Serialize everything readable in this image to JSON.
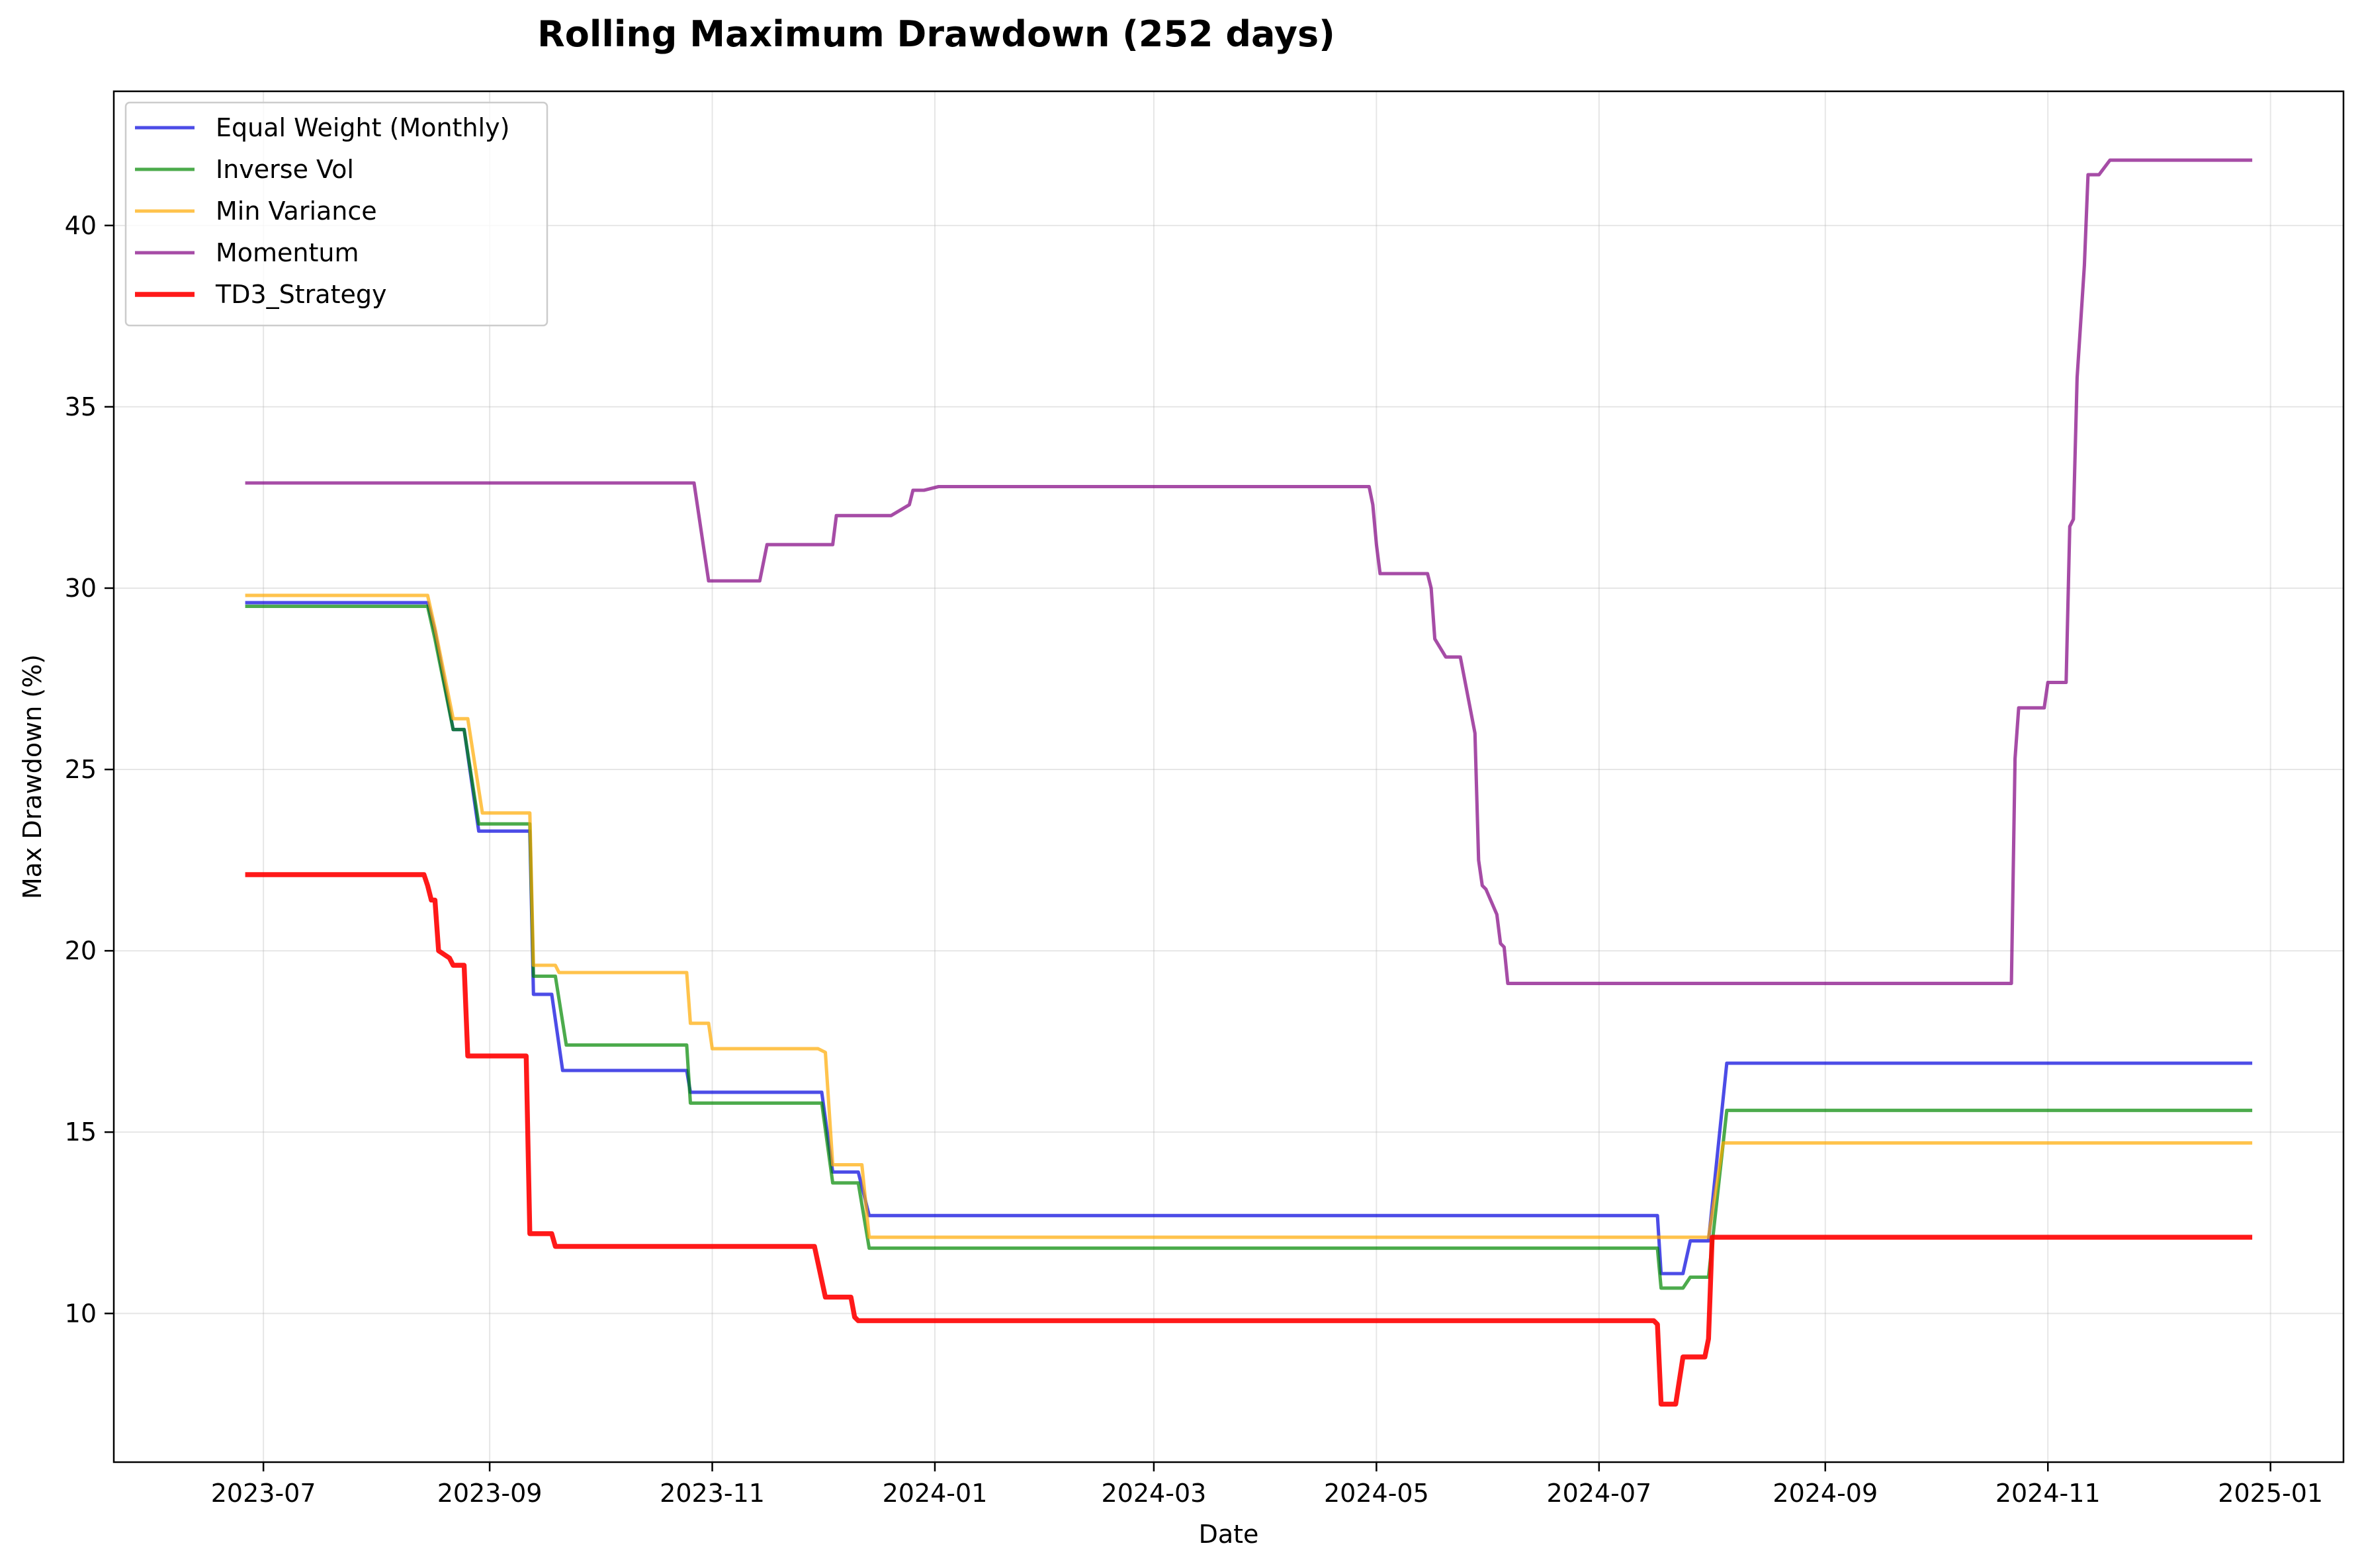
{
  "chart_data": {
    "type": "line",
    "title": "Rolling Maximum Drawdown (252 days)",
    "xlabel": "Date",
    "ylabel": "Max Drawdown (%)",
    "xlim": [
      "2023-05-21",
      "2025-01-21"
    ],
    "ylim": [
      5.9,
      43.7
    ],
    "x_ticks": [
      "2023-07",
      "2023-09",
      "2023-11",
      "2024-01",
      "2024-03",
      "2024-05",
      "2024-07",
      "2024-09",
      "2024-11",
      "2025-01"
    ],
    "y_ticks": [
      10,
      15,
      20,
      25,
      30,
      35,
      40
    ],
    "grid": true,
    "legend_position": "top-left",
    "series": [
      {
        "name": "Equal Weight (Monthly)",
        "color": "#0000dd",
        "opacity": 0.7,
        "width": 2.2,
        "points": [
          [
            "2023-06-26",
            29.6
          ],
          [
            "2023-08-15",
            29.6
          ],
          [
            "2023-08-17",
            28.8
          ],
          [
            "2023-08-22",
            26.1
          ],
          [
            "2023-08-25",
            26.1
          ],
          [
            "2023-08-29",
            23.3
          ],
          [
            "2023-09-12",
            23.3
          ],
          [
            "2023-09-13",
            18.8
          ],
          [
            "2023-09-18",
            18.8
          ],
          [
            "2023-09-21",
            16.7
          ],
          [
            "2023-10-25",
            16.7
          ],
          [
            "2023-10-26",
            16.1
          ],
          [
            "2023-12-01",
            16.1
          ],
          [
            "2023-12-04",
            13.9
          ],
          [
            "2023-12-11",
            13.9
          ],
          [
            "2023-12-14",
            12.7
          ],
          [
            "2024-07-17",
            12.7
          ],
          [
            "2024-07-18",
            11.1
          ],
          [
            "2024-07-24",
            11.1
          ],
          [
            "2024-07-26",
            12.0
          ],
          [
            "2024-07-31",
            12.0
          ],
          [
            "2024-08-05",
            16.9
          ],
          [
            "2024-12-27",
            16.9
          ]
        ]
      },
      {
        "name": "Inverse Vol",
        "color": "#008800",
        "opacity": 0.7,
        "width": 2.2,
        "points": [
          [
            "2023-06-26",
            29.5
          ],
          [
            "2023-08-15",
            29.5
          ],
          [
            "2023-08-17",
            28.6
          ],
          [
            "2023-08-22",
            26.1
          ],
          [
            "2023-08-25",
            26.1
          ],
          [
            "2023-08-29",
            23.5
          ],
          [
            "2023-09-12",
            23.5
          ],
          [
            "2023-09-13",
            19.3
          ],
          [
            "2023-09-19",
            19.3
          ],
          [
            "2023-09-22",
            17.4
          ],
          [
            "2023-10-25",
            17.4
          ],
          [
            "2023-10-26",
            15.8
          ],
          [
            "2023-12-01",
            15.8
          ],
          [
            "2023-12-04",
            13.6
          ],
          [
            "2023-12-11",
            13.6
          ],
          [
            "2023-12-14",
            11.8
          ],
          [
            "2024-07-17",
            11.8
          ],
          [
            "2024-07-18",
            10.7
          ],
          [
            "2024-07-24",
            10.7
          ],
          [
            "2024-07-26",
            11.0
          ],
          [
            "2024-07-31",
            11.0
          ],
          [
            "2024-08-05",
            15.6
          ],
          [
            "2024-12-27",
            15.6
          ]
        ]
      },
      {
        "name": "Min Variance",
        "color": "#ffaa00",
        "opacity": 0.7,
        "width": 2.2,
        "points": [
          [
            "2023-06-26",
            29.8
          ],
          [
            "2023-08-15",
            29.8
          ],
          [
            "2023-08-17",
            28.9
          ],
          [
            "2023-08-22",
            26.4
          ],
          [
            "2023-08-26",
            26.4
          ],
          [
            "2023-08-30",
            23.8
          ],
          [
            "2023-09-12",
            23.8
          ],
          [
            "2023-09-13",
            19.6
          ],
          [
            "2023-09-19",
            19.6
          ],
          [
            "2023-09-20",
            19.4
          ],
          [
            "2023-10-25",
            19.4
          ],
          [
            "2023-10-26",
            18.0
          ],
          [
            "2023-10-31",
            18.0
          ],
          [
            "2023-11-01",
            17.3
          ],
          [
            "2023-11-30",
            17.3
          ],
          [
            "2023-12-02",
            17.2
          ],
          [
            "2023-12-04",
            14.1
          ],
          [
            "2023-12-12",
            14.1
          ],
          [
            "2023-12-14",
            12.1
          ],
          [
            "2024-07-31",
            12.1
          ],
          [
            "2024-08-04",
            14.7
          ],
          [
            "2024-12-27",
            14.7
          ]
        ]
      },
      {
        "name": "Momentum",
        "color": "#800080",
        "opacity": 0.7,
        "width": 2.2,
        "points": [
          [
            "2023-06-26",
            32.9
          ],
          [
            "2023-10-27",
            32.9
          ],
          [
            "2023-10-31",
            30.2
          ],
          [
            "2023-11-14",
            30.2
          ],
          [
            "2023-11-16",
            31.2
          ],
          [
            "2023-12-04",
            31.2
          ],
          [
            "2023-12-05",
            32.0
          ],
          [
            "2023-12-20",
            32.0
          ],
          [
            "2023-12-25",
            32.3
          ],
          [
            "2023-12-26",
            32.7
          ],
          [
            "2023-12-29",
            32.7
          ],
          [
            "2024-01-02",
            32.8
          ],
          [
            "2024-04-29",
            32.8
          ],
          [
            "2024-04-30",
            32.3
          ],
          [
            "2024-05-01",
            31.2
          ],
          [
            "2024-05-02",
            30.4
          ],
          [
            "2024-05-15",
            30.4
          ],
          [
            "2024-05-16",
            30.0
          ],
          [
            "2024-05-17",
            28.6
          ],
          [
            "2024-05-20",
            28.1
          ],
          [
            "2024-05-24",
            28.1
          ],
          [
            "2024-05-28",
            26.0
          ],
          [
            "2024-05-29",
            22.5
          ],
          [
            "2024-05-30",
            21.8
          ],
          [
            "2024-05-31",
            21.7
          ],
          [
            "2024-06-03",
            21.0
          ],
          [
            "2024-06-04",
            20.2
          ],
          [
            "2024-06-05",
            20.1
          ],
          [
            "2024-06-06",
            19.1
          ],
          [
            "2024-10-22",
            19.1
          ],
          [
            "2024-10-23",
            25.3
          ],
          [
            "2024-10-24",
            26.7
          ],
          [
            "2024-10-31",
            26.7
          ],
          [
            "2024-11-01",
            27.4
          ],
          [
            "2024-11-06",
            27.4
          ],
          [
            "2024-11-07",
            31.7
          ],
          [
            "2024-11-08",
            31.9
          ],
          [
            "2024-11-09",
            35.8
          ],
          [
            "2024-11-11",
            38.9
          ],
          [
            "2024-11-12",
            41.4
          ],
          [
            "2024-11-15",
            41.4
          ],
          [
            "2024-11-18",
            41.8
          ],
          [
            "2024-12-27",
            41.8
          ]
        ]
      },
      {
        "name": "TD3_Strategy",
        "color": "#ff0000",
        "opacity": 0.9,
        "width": 3.2,
        "points": [
          [
            "2023-06-26",
            22.1
          ],
          [
            "2023-08-14",
            22.1
          ],
          [
            "2023-08-15",
            21.8
          ],
          [
            "2023-08-16",
            21.4
          ],
          [
            "2023-08-17",
            21.4
          ],
          [
            "2023-08-18",
            20.0
          ],
          [
            "2023-08-21",
            19.8
          ],
          [
            "2023-08-22",
            19.6
          ],
          [
            "2023-08-25",
            19.6
          ],
          [
            "2023-08-26",
            17.1
          ],
          [
            "2023-09-11",
            17.1
          ],
          [
            "2023-09-12",
            12.2
          ],
          [
            "2023-09-18",
            12.2
          ],
          [
            "2023-09-19",
            11.85
          ],
          [
            "2023-11-29",
            11.85
          ],
          [
            "2023-12-02",
            10.45
          ],
          [
            "2023-12-09",
            10.45
          ],
          [
            "2023-12-10",
            9.9
          ],
          [
            "2023-12-11",
            9.8
          ],
          [
            "2024-07-16",
            9.8
          ],
          [
            "2024-07-17",
            9.7
          ],
          [
            "2024-07-18",
            7.5
          ],
          [
            "2024-07-22",
            7.5
          ],
          [
            "2024-07-24",
            8.8
          ],
          [
            "2024-07-30",
            8.8
          ],
          [
            "2024-07-31",
            9.3
          ],
          [
            "2024-08-01",
            12.1
          ],
          [
            "2024-12-27",
            12.1
          ]
        ]
      }
    ]
  }
}
